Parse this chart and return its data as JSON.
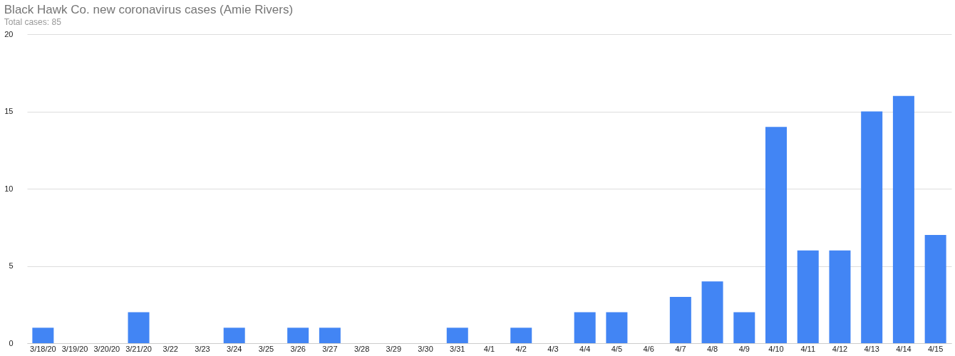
{
  "chart_data": {
    "type": "bar",
    "title": "Black Hawk Co. new coronavirus cases (Amie Rivers)",
    "subtitle": "Total cases: 85",
    "categories": [
      "3/18/20",
      "3/19/20",
      "3/20/20",
      "3/21/20",
      "3/22",
      "3/23",
      "3/24",
      "3/25",
      "3/26",
      "3/27",
      "3/28",
      "3/29",
      "3/30",
      "3/31",
      "4/1",
      "4/2",
      "4/3",
      "4/4",
      "4/5",
      "4/6",
      "4/7",
      "4/8",
      "4/9",
      "4/10",
      "4/11",
      "4/12",
      "4/13",
      "4/14",
      "4/15"
    ],
    "values": [
      1,
      0,
      0,
      2,
      0,
      0,
      1,
      0,
      1,
      1,
      0,
      0,
      0,
      1,
      0,
      1,
      0,
      2,
      2,
      0,
      3,
      4,
      2,
      14,
      6,
      6,
      15,
      16,
      7
    ],
    "color": "#4285f4",
    "ylim": [
      0,
      20
    ],
    "yticks": [
      0,
      5,
      10,
      15,
      20
    ],
    "grid": "y"
  }
}
